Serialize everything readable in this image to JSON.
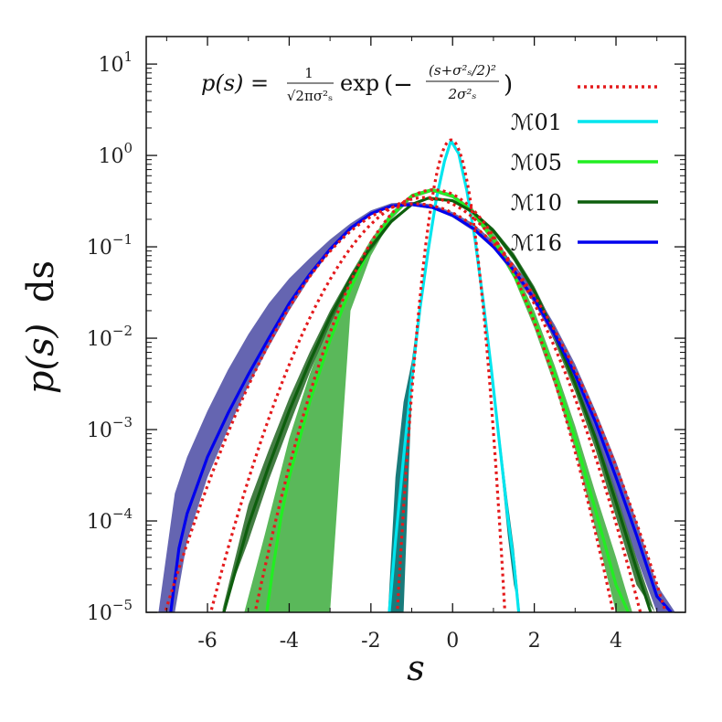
{
  "chart_data": {
    "type": "line",
    "xlabel": "s",
    "ylabel_parts": {
      "func": "p(s)",
      "diff": "ds"
    },
    "xlim": [
      -7.5,
      5.7
    ],
    "ylim": [
      1e-05,
      20
    ],
    "yscale": "log",
    "grid": false,
    "legend_placement": "top-right",
    "x_ticks": [
      -6,
      -4,
      -2,
      0,
      2,
      4
    ],
    "x_tick_labels": [
      "-6",
      "-4",
      "-2",
      "0",
      "2",
      "4"
    ],
    "y_ticks": [
      {
        "value": 10,
        "base": "10",
        "exp": "1"
      },
      {
        "value": 1,
        "base": "10",
        "exp": "0"
      },
      {
        "value": 0.1,
        "base": "10",
        "exp": "−1"
      },
      {
        "value": 0.01,
        "base": "10",
        "exp": "−2"
      },
      {
        "value": 0.001,
        "base": "10",
        "exp": "−3"
      },
      {
        "value": 0.0001,
        "base": "10",
        "exp": "−4"
      },
      {
        "value": 1e-05,
        "base": "10",
        "exp": "−5"
      }
    ],
    "formula_legend": {
      "lhs": "p(s) =",
      "frac_num": "1",
      "frac_den": "√2πσ²ₛ",
      "exp_text": "exp",
      "exp_arg_num": "(s+σ²ₛ/2)²",
      "exp_arg_den": "2σ²ₛ",
      "color": "#e41a1c"
    },
    "series": [
      {
        "name": "ℳ01",
        "color": "#00e5ee",
        "band_color": "#006d6d",
        "sigma": 0.27,
        "x": [
          -1.55,
          -1.4,
          -1.2,
          -1.0,
          -0.8,
          -0.6,
          -0.4,
          -0.2,
          -0.04,
          0.15,
          0.35,
          0.55,
          0.75,
          0.95,
          1.15,
          1.35,
          1.5,
          1.62
        ],
        "y": [
          1e-05,
          6e-05,
          0.0005,
          0.0036,
          0.021,
          0.09,
          0.33,
          0.86,
          1.45,
          1.05,
          0.41,
          0.12,
          0.025,
          0.0045,
          0.0007,
          0.00011,
          3.5e-05,
          1e-05
        ],
        "band_x": [
          -1.58,
          -1.4,
          -1.2,
          -1.0,
          -0.8,
          -0.6,
          -0.4,
          -0.2,
          -0.04,
          0.15,
          0.35,
          0.55,
          0.75,
          0.95,
          1.15,
          1.35,
          1.5,
          1.65
        ],
        "band_low": [
          1e-05,
          1e-05,
          1e-05,
          0.0025,
          0.017,
          0.08,
          0.3,
          0.82,
          1.4,
          1.0,
          0.38,
          0.11,
          0.022,
          0.0038,
          0.00055,
          7e-05,
          2e-05,
          1e-05
        ],
        "band_high": [
          1e-05,
          0.0003,
          0.002,
          0.0055,
          0.026,
          0.1,
          0.36,
          0.9,
          1.5,
          1.1,
          0.44,
          0.13,
          0.028,
          0.0052,
          0.0009,
          0.00016,
          5e-05,
          1e-05
        ]
      },
      {
        "name": "ℳ05",
        "color": "#22ee22",
        "band_color": "#48b048",
        "sigma": 0.95,
        "x": [
          -4.55,
          -4.4,
          -4.2,
          -4.0,
          -3.5,
          -3.0,
          -2.5,
          -2.0,
          -1.5,
          -1.0,
          -0.5,
          0.0,
          0.5,
          1.0,
          1.5,
          2.0,
          2.5,
          3.0,
          3.5,
          4.0,
          4.3
        ],
        "y": [
          1e-05,
          3e-05,
          0.00011,
          0.0003,
          0.002,
          0.0095,
          0.035,
          0.1,
          0.22,
          0.36,
          0.42,
          0.36,
          0.24,
          0.12,
          0.05,
          0.016,
          0.004,
          0.0008,
          0.00013,
          2e-05,
          1e-05
        ],
        "band_x": [
          -5.1,
          -4.6,
          -4.0,
          -3.5,
          -3.0,
          -2.5,
          -2.0,
          -1.5,
          -1.0,
          -0.5,
          0.0,
          0.5,
          1.0,
          1.5,
          2.0,
          2.5,
          3.0,
          3.5,
          4.0,
          4.4
        ],
        "band_low": [
          1e-05,
          1e-05,
          1e-05,
          1e-05,
          1e-05,
          0.02,
          0.08,
          0.2,
          0.34,
          0.4,
          0.34,
          0.22,
          0.11,
          0.045,
          0.013,
          0.003,
          0.0006,
          8e-05,
          1e-05,
          1e-05
        ],
        "band_high": [
          1e-05,
          7e-05,
          0.0008,
          0.004,
          0.016,
          0.05,
          0.12,
          0.24,
          0.38,
          0.44,
          0.38,
          0.26,
          0.14,
          0.06,
          0.02,
          0.005,
          0.0011,
          0.0002,
          4e-05,
          1e-05
        ]
      },
      {
        "name": "ℳ10",
        "color": "#0d5e0d",
        "band_color": "#2f6f2f",
        "sigma": 1.15,
        "x": [
          -5.6,
          -5.3,
          -5.0,
          -4.5,
          -4.0,
          -3.5,
          -3.0,
          -2.5,
          -2.0,
          -1.5,
          -1.0,
          -0.6,
          0.0,
          0.5,
          1.0,
          1.5,
          2.0,
          2.5,
          3.0,
          3.5,
          4.0,
          4.5,
          4.85
        ],
        "y": [
          1e-05,
          3e-05,
          9e-05,
          0.0004,
          0.0016,
          0.0055,
          0.017,
          0.045,
          0.1,
          0.19,
          0.29,
          0.34,
          0.32,
          0.24,
          0.15,
          0.077,
          0.033,
          0.011,
          0.0032,
          0.0008,
          0.00016,
          3e-05,
          1e-05
        ],
        "band_x": [
          -5.65,
          -5.0,
          -4.5,
          -4.0,
          -3.5,
          -3.0,
          -2.5,
          -2.0,
          -1.5,
          -1.0,
          -0.6,
          0.0,
          0.5,
          1.0,
          1.5,
          2.0,
          2.5,
          3.0,
          3.5,
          4.0,
          4.5,
          4.95
        ],
        "band_low": [
          1e-05,
          6e-05,
          0.00028,
          0.0011,
          0.0042,
          0.014,
          0.04,
          0.09,
          0.18,
          0.28,
          0.33,
          0.31,
          0.23,
          0.14,
          0.07,
          0.029,
          0.009,
          0.0026,
          0.0006,
          0.00011,
          2e-05,
          1e-05
        ],
        "band_high": [
          1e-05,
          0.00015,
          0.0006,
          0.0022,
          0.007,
          0.02,
          0.05,
          0.11,
          0.2,
          0.3,
          0.35,
          0.33,
          0.25,
          0.16,
          0.085,
          0.037,
          0.013,
          0.0038,
          0.001,
          0.00022,
          4e-05,
          1e-05
        ]
      },
      {
        "name": "ℳ16",
        "color": "#0000ee",
        "band_color": "#5454a8",
        "sigma": 1.35,
        "x": [
          -6.9,
          -6.7,
          -6.5,
          -6.0,
          -5.5,
          -5.0,
          -4.5,
          -4.0,
          -3.5,
          -3.0,
          -2.5,
          -2.0,
          -1.5,
          -1.0,
          -0.5,
          0.0,
          0.5,
          1.0,
          1.5,
          2.0,
          2.5,
          3.0,
          3.5,
          4.0,
          4.5,
          5.0,
          5.35
        ],
        "y": [
          1e-05,
          5e-05,
          0.00012,
          0.0005,
          0.0015,
          0.004,
          0.01,
          0.024,
          0.05,
          0.094,
          0.16,
          0.23,
          0.28,
          0.29,
          0.27,
          0.22,
          0.16,
          0.1,
          0.055,
          0.027,
          0.011,
          0.004,
          0.0012,
          0.0003,
          7e-05,
          1.5e-05,
          1e-05
        ],
        "band_x": [
          -7.2,
          -6.8,
          -6.5,
          -6.0,
          -5.5,
          -5.0,
          -4.5,
          -4.0,
          -3.5,
          -3.0,
          -2.5,
          -2.0,
          -1.5,
          -1.0,
          -0.5,
          0.0,
          0.5,
          1.0,
          1.5,
          2.0,
          2.5,
          3.0,
          3.5,
          4.0,
          4.5,
          5.0,
          5.45
        ],
        "band_low": [
          1e-05,
          1e-05,
          6e-05,
          0.0003,
          0.001,
          0.003,
          0.008,
          0.02,
          0.045,
          0.088,
          0.15,
          0.22,
          0.27,
          0.28,
          0.26,
          0.21,
          0.15,
          0.095,
          0.05,
          0.024,
          0.0095,
          0.0033,
          0.0009,
          0.0002,
          4e-05,
          1e-05,
          1e-05
        ],
        "band_high": [
          1e-05,
          0.0002,
          0.0005,
          0.0016,
          0.0045,
          0.011,
          0.024,
          0.045,
          0.075,
          0.12,
          0.18,
          0.25,
          0.3,
          0.31,
          0.29,
          0.24,
          0.18,
          0.115,
          0.065,
          0.033,
          0.014,
          0.0052,
          0.0016,
          0.00045,
          0.0001,
          2e-05,
          1e-05
        ]
      }
    ]
  }
}
